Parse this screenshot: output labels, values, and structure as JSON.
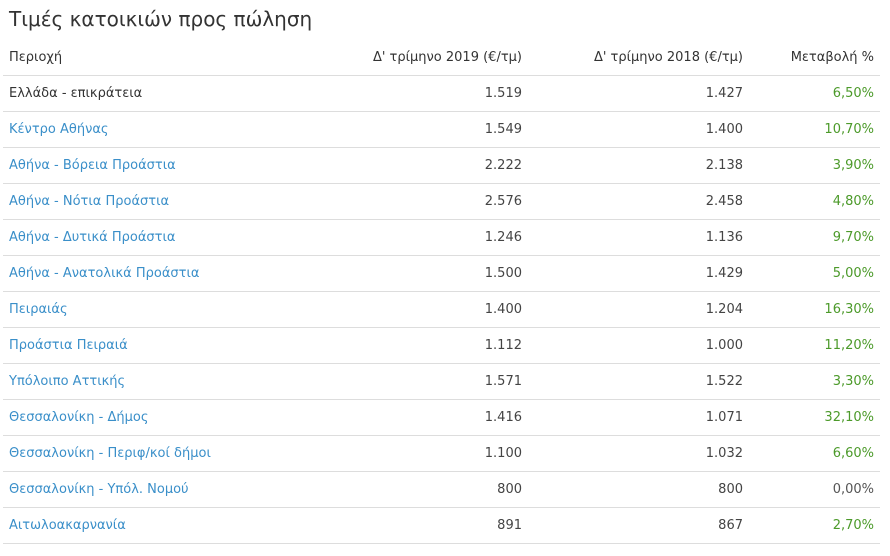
{
  "title": "Τιμές κατοικιών προς πώληση",
  "headers": {
    "region": "Περιοχή",
    "q4_2019": "Δ' τρίμηνο 2019 (€/τμ)",
    "q4_2018": "Δ' τρίμηνο 2018 (€/τμ)",
    "change": "Μεταβολή %"
  },
  "colors": {
    "link": "#3a8fc9",
    "positive": "#4c9a2a",
    "text": "#333333",
    "border": "#dddddd"
  },
  "rows": [
    {
      "region": "Ελλάδα - επικράτεια",
      "link": false,
      "q4_2019": "1.519",
      "q4_2018": "1.427",
      "change": "6,50%"
    },
    {
      "region": "Κέντρο Αθήνας",
      "link": true,
      "q4_2019": "1.549",
      "q4_2018": "1.400",
      "change": "10,70%"
    },
    {
      "region": "Αθήνα - Βόρεια Προάστια",
      "link": true,
      "q4_2019": "2.222",
      "q4_2018": "2.138",
      "change": "3,90%"
    },
    {
      "region": "Αθήνα - Νότια Προάστια",
      "link": true,
      "q4_2019": "2.576",
      "q4_2018": "2.458",
      "change": "4,80%"
    },
    {
      "region": "Αθήνα - Δυτικά Προάστια",
      "link": true,
      "q4_2019": "1.246",
      "q4_2018": "1.136",
      "change": "9,70%"
    },
    {
      "region": "Αθήνα - Ανατολικά Προάστια",
      "link": true,
      "q4_2019": "1.500",
      "q4_2018": "1.429",
      "change": "5,00%"
    },
    {
      "region": "Πειραιάς",
      "link": true,
      "q4_2019": "1.400",
      "q4_2018": "1.204",
      "change": "16,30%"
    },
    {
      "region": "Προάστια Πειραιά",
      "link": true,
      "q4_2019": "1.112",
      "q4_2018": "1.000",
      "change": "11,20%"
    },
    {
      "region": "Υπόλοιπο Αττικής",
      "link": true,
      "q4_2019": "1.571",
      "q4_2018": "1.522",
      "change": "3,30%"
    },
    {
      "region": "Θεσσαλονίκη - Δήμος",
      "link": true,
      "q4_2019": "1.416",
      "q4_2018": "1.071",
      "change": "32,10%"
    },
    {
      "region": "Θεσσαλονίκη - Περιφ/κοί δήμοι",
      "link": true,
      "q4_2019": "1.100",
      "q4_2018": "1.032",
      "change": "6,60%"
    },
    {
      "region": "Θεσσαλονίκη - Υπόλ. Νομού",
      "link": true,
      "q4_2019": "800",
      "q4_2018": "800",
      "change": "0,00%"
    },
    {
      "region": "Αιτωλοακαρνανία",
      "link": true,
      "q4_2019": "891",
      "q4_2018": "867",
      "change": "2,70%"
    }
  ]
}
